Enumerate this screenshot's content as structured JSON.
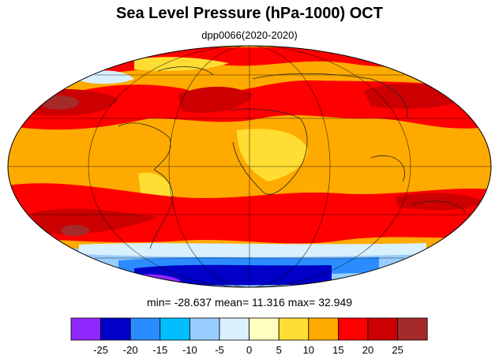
{
  "title": "Sea Level Pressure (hPa-1000) OCT",
  "subtitle": "dpp0066(2020-2020)",
  "stats": {
    "text": "min= -28.637   mean=  11.316   max=  32.949",
    "min": -28.637,
    "mean": 11.316,
    "max": 32.949
  },
  "colorbar": {
    "colors": [
      "#8f28ff",
      "#0000c8",
      "#2b8cff",
      "#00bfff",
      "#99ccff",
      "#d9f0ff",
      "#ffffc0",
      "#ffdd33",
      "#ffaa00",
      "#ff0000",
      "#cc0000",
      "#a52a2a"
    ],
    "labels": [
      "-25",
      "-20",
      "-15",
      "-10",
      "-5",
      "0",
      "5",
      "10",
      "15",
      "20",
      "25"
    ]
  },
  "chart_data": {
    "type": "heatmap",
    "projection": "mollweide",
    "title": "Sea Level Pressure (hPa-1000) OCT",
    "subtitle": "dpp0066(2020-2020)",
    "color_levels": [
      -25,
      -20,
      -15,
      -10,
      -5,
      0,
      5,
      10,
      15,
      20,
      25
    ],
    "min": -28.637,
    "mean": 11.316,
    "max": 32.949
  }
}
